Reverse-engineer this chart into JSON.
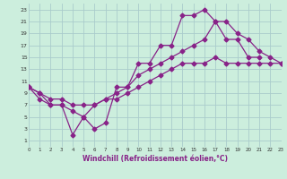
{
  "xlabel": "Windchill (Refroidissement éolien,°C)",
  "background_color": "#cceedd",
  "grid_color": "#aacccc",
  "line_color": "#882288",
  "xlim": [
    0,
    23
  ],
  "ylim": [
    0,
    24
  ],
  "xtick_vals": [
    0,
    1,
    2,
    3,
    4,
    5,
    6,
    7,
    8,
    9,
    10,
    11,
    12,
    13,
    14,
    15,
    16,
    17,
    18,
    19,
    20,
    21,
    22,
    23
  ],
  "ytick_vals": [
    1,
    3,
    5,
    7,
    9,
    11,
    13,
    15,
    17,
    19,
    21,
    23
  ],
  "line1_x": [
    0,
    1,
    2,
    3,
    4,
    5,
    6,
    7,
    8,
    9,
    10,
    11,
    12,
    13,
    14,
    15,
    16,
    17,
    18,
    19,
    20,
    21
  ],
  "line1_y": [
    10,
    8,
    7,
    7,
    2,
    5,
    3,
    4,
    10,
    10,
    14,
    14,
    17,
    17,
    22,
    22,
    23,
    21,
    18,
    18,
    15,
    15
  ],
  "line2_x": [
    0,
    1,
    2,
    3,
    4,
    5,
    6,
    7,
    8,
    9,
    10,
    11,
    12,
    13,
    14,
    15,
    16,
    17,
    18,
    19,
    20,
    21,
    22,
    23
  ],
  "line2_y": [
    10,
    9,
    7,
    7,
    6,
    5,
    7,
    8,
    9,
    10,
    12,
    13,
    14,
    15,
    16,
    17,
    18,
    21,
    21,
    19,
    18,
    16,
    15,
    14
  ],
  "line3_x": [
    0,
    1,
    2,
    3,
    4,
    5,
    6,
    7,
    8,
    9,
    10,
    11,
    12,
    13,
    14,
    15,
    16,
    17,
    18,
    19,
    20,
    21,
    22,
    23
  ],
  "line3_y": [
    10,
    9,
    8,
    8,
    7,
    7,
    7,
    8,
    8,
    9,
    10,
    11,
    12,
    13,
    14,
    14,
    14,
    15,
    14,
    14,
    14,
    14,
    14,
    14
  ],
  "marker": "D",
  "markersize": 2.5,
  "linewidth": 0.9
}
